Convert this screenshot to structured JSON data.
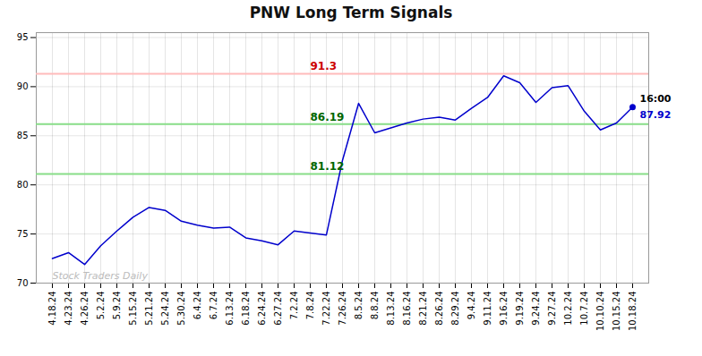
{
  "chart_data": {
    "type": "line",
    "title": "PNW Long Term Signals",
    "categories": [
      "4.18.24",
      "4.23.24",
      "4.26.24",
      "5.2.24",
      "5.9.24",
      "5.15.24",
      "5.21.24",
      "5.24.24",
      "5.30.24",
      "6.4.24",
      "6.7.24",
      "6.13.24",
      "6.18.24",
      "6.24.24",
      "6.27.24",
      "7.2.24",
      "7.8.24",
      "7.22.24",
      "7.26.24",
      "8.5.24",
      "8.8.24",
      "8.13.24",
      "8.16.24",
      "8.21.24",
      "8.26.24",
      "8.29.24",
      "9.4.24",
      "9.11.24",
      "9.16.24",
      "9.19.24",
      "9.24.24",
      "9.27.24",
      "10.2.24",
      "10.7.24",
      "10.10.24",
      "10.15.24",
      "10.18.24"
    ],
    "values": [
      72.5,
      73.1,
      71.9,
      73.8,
      75.3,
      76.7,
      77.7,
      77.4,
      76.3,
      75.9,
      75.6,
      75.7,
      74.6,
      74.3,
      73.9,
      75.3,
      75.1,
      74.9,
      82.5,
      88.3,
      85.3,
      85.8,
      86.3,
      86.7,
      86.9,
      86.6,
      87.8,
      88.9,
      91.1,
      90.4,
      88.4,
      89.9,
      90.1,
      87.5,
      85.6,
      86.3,
      87.92
    ],
    "color": "#0000cc",
    "ylim": [
      70,
      95.5
    ],
    "yticks": [
      70,
      75,
      80,
      85,
      90,
      95
    ],
    "grid": true,
    "hlines": [
      {
        "value": 91.3,
        "color": "#ffbbbb",
        "label": "91.3",
        "label_color": "#cc0000"
      },
      {
        "value": 86.19,
        "color": "#88dd88",
        "label": "86.19",
        "label_color": "#006600"
      },
      {
        "value": 81.12,
        "color": "#88dd88",
        "label": "81.12",
        "label_color": "#006600"
      }
    ],
    "endpoint": {
      "label": "16:00",
      "value": 87.92,
      "value_label": "87.92",
      "color": "#0000cc"
    },
    "watermark": "Stock Traders Daily"
  }
}
